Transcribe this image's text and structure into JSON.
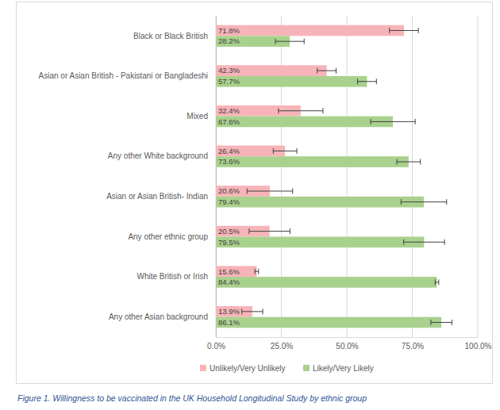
{
  "chart_data": {
    "type": "bar",
    "orientation": "horizontal",
    "title": "Figure 1. Willingness to be vaccinated in the UK Household Longitudinal Study by ethnic group",
    "categories": [
      "Black or Black British",
      "Asian or Asian British - Pakistani or Bangladeshi",
      "Mixed",
      "Any other White background",
      "Asian or Asian British- Indian",
      "Any other ethnic group",
      "White British or Irish",
      "Any other Asian background"
    ],
    "series": [
      {
        "name": "Unlikely/Very Unlikely",
        "color": "#F7B4B8",
        "values": [
          71.8,
          42.3,
          32.4,
          26.4,
          20.6,
          20.5,
          15.6,
          13.9
        ],
        "value_labels": [
          "71.8%",
          "42.3%",
          "32.4%",
          "26.4%",
          "20.6%",
          "20.5%",
          "15.6%",
          "13.9%"
        ],
        "errors": [
          5.5,
          3.6,
          8.5,
          4.5,
          8.7,
          7.8,
          0.7,
          4.0
        ]
      },
      {
        "name": "Likely/Very Likely",
        "color": "#A9D18E",
        "values": [
          28.2,
          57.7,
          67.6,
          73.6,
          79.4,
          79.5,
          84.4,
          86.1
        ],
        "value_labels": [
          "28.2%",
          "57.7%",
          "67.6%",
          "73.6%",
          "79.4%",
          "79.5%",
          "84.4%",
          "86.1%"
        ],
        "errors": [
          5.5,
          3.6,
          8.5,
          4.5,
          8.7,
          7.8,
          0.7,
          4.0
        ]
      }
    ],
    "xlim": [
      0,
      100
    ],
    "xticks": [
      {
        "value": 0,
        "label": "0.0%"
      },
      {
        "value": 25,
        "label": "25.0%"
      },
      {
        "value": 50,
        "label": "50.0%"
      },
      {
        "value": 75,
        "label": "75.0%"
      },
      {
        "value": 100,
        "label": "100.0%"
      }
    ],
    "grid": true,
    "legend": "bottom",
    "data_labels": true
  }
}
